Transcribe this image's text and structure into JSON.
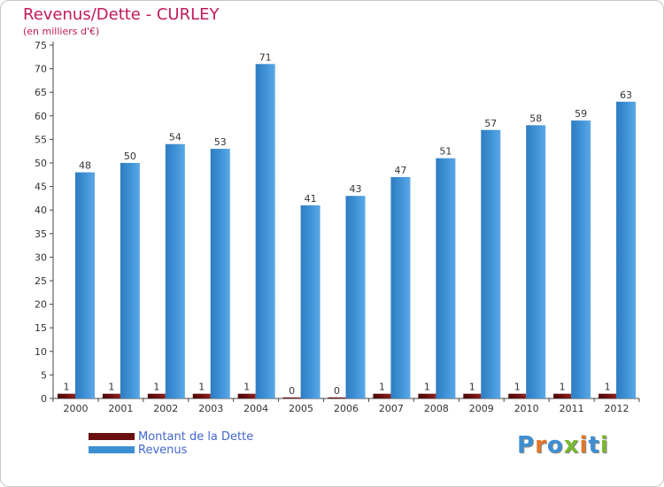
{
  "title": "Revenus/Dette - CURLEY",
  "subtitle": "(en milliers d'€)",
  "logo_text": "Proxiti",
  "colors": {
    "title": "#c2185b",
    "dette": "#6b0f0f",
    "revenus": "#3d8fd4",
    "legend_text": "#4466cc"
  },
  "chart_data": {
    "type": "bar",
    "title": "Revenus/Dette - CURLEY",
    "ylabel": "(en milliers d'€)",
    "xlabel": "",
    "ylim": [
      0,
      75
    ],
    "yticks": [
      0,
      5,
      10,
      15,
      20,
      25,
      30,
      35,
      40,
      45,
      50,
      55,
      60,
      65,
      70,
      75
    ],
    "grid": false,
    "legend_position": "bottom-left",
    "categories": [
      "2000",
      "2001",
      "2002",
      "2003",
      "2004",
      "2005",
      "2006",
      "2007",
      "2008",
      "2009",
      "2010",
      "2011",
      "2012"
    ],
    "series": [
      {
        "name": "Montant de la Dette",
        "values": [
          1,
          1,
          1,
          1,
          1,
          0,
          0,
          1,
          1,
          1,
          1,
          1,
          1
        ]
      },
      {
        "name": "Revenus",
        "values": [
          48,
          50,
          54,
          53,
          71,
          41,
          43,
          47,
          51,
          57,
          58,
          59,
          63
        ]
      }
    ]
  }
}
